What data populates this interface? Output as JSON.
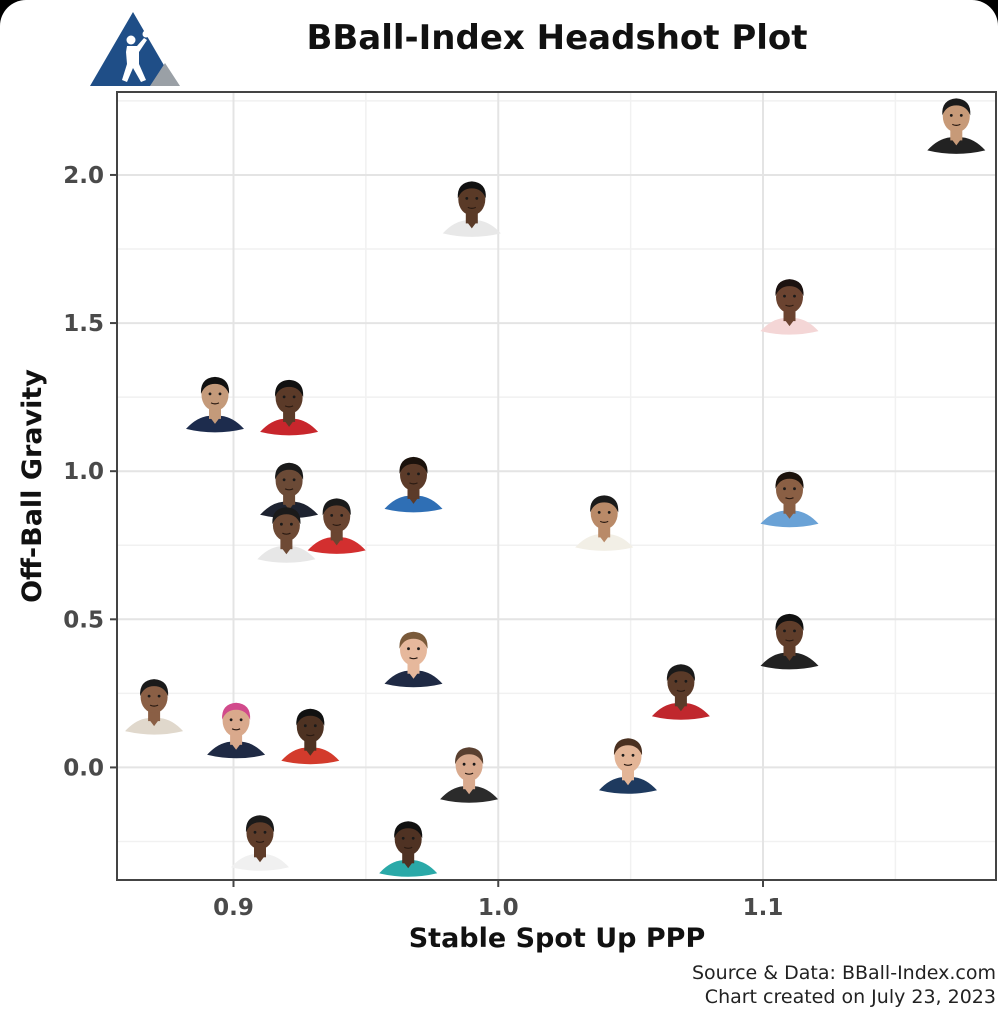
{
  "colors": {
    "logo_blue": "#1f4e87",
    "logo_gray": "#9aa0a6",
    "grid_major": "#e4e4e4",
    "grid_minor": "#f1f1f1",
    "panel_border": "#444444"
  },
  "logo": {
    "icon": "basketball-player-triangle-logo"
  },
  "chart_data": {
    "type": "scatter",
    "title": "BBall-Index Headshot Plot",
    "xlabel": "Stable Spot Up PPP",
    "ylabel": "Off-Ball Gravity",
    "xlim": [
      0.856,
      1.188
    ],
    "ylim": [
      -0.38,
      2.28
    ],
    "x_ticks": [
      0.9,
      1.0,
      1.1
    ],
    "x_tick_labels": [
      "0.9",
      "1.0",
      "1.1"
    ],
    "y_ticks": [
      0.0,
      0.5,
      1.0,
      1.5,
      2.0
    ],
    "y_tick_labels": [
      "0.0",
      "0.5",
      "1.0",
      "1.5",
      "2.0"
    ],
    "grid": true,
    "marker": "player-headshot",
    "points": [
      {
        "x": 1.173,
        "y": 2.13,
        "jersey": "#222222",
        "skin": "#c79a78",
        "hair": "#1a1a1a"
      },
      {
        "x": 0.99,
        "y": 1.85,
        "jersey": "#e8e8e8",
        "skin": "#5a3a27",
        "hair": "#111111"
      },
      {
        "x": 1.11,
        "y": 1.52,
        "jersey": "#f4d6d6",
        "skin": "#6b4330",
        "hair": "#1c1210"
      },
      {
        "x": 0.893,
        "y": 1.19,
        "jersey": "#1d2c4d",
        "skin": "#c49a7a",
        "hair": "#111111"
      },
      {
        "x": 0.921,
        "y": 1.18,
        "jersey": "#c8262c",
        "skin": "#5b3a28",
        "hair": "#111111"
      },
      {
        "x": 0.921,
        "y": 0.9,
        "jersey": "#1e2330",
        "skin": "#6b4a36",
        "hair": "#1a1a1a"
      },
      {
        "x": 0.968,
        "y": 0.92,
        "jersey": "#2f6fb5",
        "skin": "#5c3b29",
        "hair": "#1b120c"
      },
      {
        "x": 1.04,
        "y": 0.79,
        "jersey": "#f2efe6",
        "skin": "#b98a68",
        "hair": "#1a1a1a"
      },
      {
        "x": 1.11,
        "y": 0.87,
        "jersey": "#6aa2d6",
        "skin": "#8a5f44",
        "hair": "#1b120c"
      },
      {
        "x": 0.92,
        "y": 0.75,
        "jersey": "#e7e7e7",
        "skin": "#6e4a35",
        "hair": "#1a1a1a"
      },
      {
        "x": 0.939,
        "y": 0.78,
        "jersey": "#d32f2f",
        "skin": "#6a4531",
        "hair": "#1a1a1a"
      },
      {
        "x": 0.968,
        "y": 0.33,
        "jersey": "#1f2a44",
        "skin": "#e6b89c",
        "hair": "#7a5a3a"
      },
      {
        "x": 1.11,
        "y": 0.39,
        "jersey": "#222222",
        "skin": "#5f3d2a",
        "hair": "#111111"
      },
      {
        "x": 1.069,
        "y": 0.22,
        "jersey": "#c0272d",
        "skin": "#5a3a28",
        "hair": "#1a1a1a"
      },
      {
        "x": 0.87,
        "y": 0.17,
        "jersey": "#e0d8cc",
        "skin": "#8a5f45",
        "hair": "#1a1a1a"
      },
      {
        "x": 0.901,
        "y": 0.09,
        "jersey": "#1f2a44",
        "skin": "#d9a98c",
        "hair": "#d14a8b"
      },
      {
        "x": 0.929,
        "y": 0.07,
        "jersey": "#d33b2c",
        "skin": "#4e3222",
        "hair": "#111111"
      },
      {
        "x": 0.989,
        "y": -0.06,
        "jersey": "#2b2b2b",
        "skin": "#d9aa8e",
        "hair": "#5a4030"
      },
      {
        "x": 1.049,
        "y": -0.03,
        "jersey": "#1e3a5f",
        "skin": "#e3b597",
        "hair": "#4a3020"
      },
      {
        "x": 0.91,
        "y": -0.29,
        "jersey": "#f0f0f0",
        "skin": "#5e3c29",
        "hair": "#1a1a1a"
      },
      {
        "x": 0.966,
        "y": -0.31,
        "jersey": "#2aa9a8",
        "skin": "#4f3223",
        "hair": "#111111"
      }
    ]
  },
  "footer": {
    "source": "Source & Data: BBall-Index.com",
    "created": "Chart created on July 23, 2023"
  }
}
